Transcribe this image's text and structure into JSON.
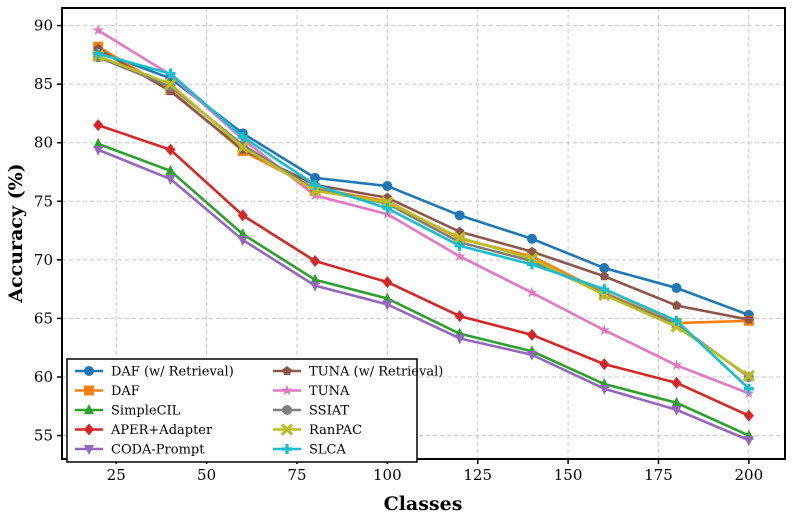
{
  "chart_data": {
    "type": "line",
    "title": "",
    "xlabel": "Classes",
    "ylabel": "Accuracy (%)",
    "xlim": [
      10,
      210
    ],
    "ylim": [
      53,
      91.5
    ],
    "grid": true,
    "legend_position": "lower-left",
    "x": [
      20,
      40,
      60,
      80,
      100,
      120,
      140,
      160,
      180,
      200
    ],
    "x_ticks": [
      25,
      50,
      75,
      100,
      125,
      150,
      175,
      200
    ],
    "y_ticks": [
      55,
      60,
      65,
      70,
      75,
      80,
      85,
      90
    ],
    "series": [
      {
        "name": "DAF (w/ Retrieval)",
        "color": "#1f77b4",
        "marker": "circle",
        "values": [
          87.8,
          85.5,
          80.8,
          77.0,
          76.3,
          73.8,
          71.8,
          69.3,
          67.6,
          65.3
        ]
      },
      {
        "name": "DAF",
        "color": "#ff7f0e",
        "marker": "square",
        "values": [
          88.2,
          84.5,
          79.3,
          76.1,
          75.0,
          71.8,
          70.3,
          67.2,
          64.6,
          64.8
        ]
      },
      {
        "name": "SimpleCIL",
        "color": "#2ca02c",
        "marker": "triangle",
        "values": [
          79.9,
          77.6,
          72.2,
          68.3,
          66.7,
          63.7,
          62.2,
          59.4,
          57.8,
          55.0
        ]
      },
      {
        "name": "APER+Adapter",
        "color": "#d62728",
        "marker": "diamond",
        "values": [
          81.5,
          79.4,
          73.8,
          69.9,
          68.1,
          65.2,
          63.6,
          61.1,
          59.5,
          56.7
        ]
      },
      {
        "name": "CODA-Prompt",
        "color": "#9467bd",
        "marker": "triangle-down",
        "values": [
          79.4,
          76.9,
          71.7,
          67.8,
          66.2,
          63.3,
          61.9,
          59.0,
          57.2,
          54.6
        ]
      },
      {
        "name": "TUNA (w/ Retrieval)",
        "color": "#8c564b",
        "marker": "pentagon",
        "values": [
          88.0,
          84.4,
          79.4,
          76.4,
          75.3,
          72.4,
          70.7,
          68.6,
          66.1,
          64.9
        ]
      },
      {
        "name": "TUNA",
        "color": "#e377c2",
        "marker": "star",
        "values": [
          89.6,
          85.8,
          80.3,
          75.5,
          73.9,
          70.3,
          67.2,
          64.0,
          61.0,
          58.6
        ]
      },
      {
        "name": "SSIAT",
        "color": "#7f7f7f",
        "marker": "circle",
        "values": [
          87.3,
          84.8,
          79.8,
          76.0,
          74.8,
          71.5,
          69.9,
          67.1,
          64.5,
          60.0
        ]
      },
      {
        "name": "RanPAC",
        "color": "#bcbd22",
        "marker": "x",
        "values": [
          87.4,
          85.0,
          79.6,
          75.9,
          74.9,
          71.9,
          70.1,
          67.0,
          64.3,
          60.1
        ]
      },
      {
        "name": "SLCA",
        "color": "#17becf",
        "marker": "plus",
        "values": [
          87.6,
          85.9,
          80.5,
          76.4,
          74.4,
          71.2,
          69.6,
          67.5,
          64.8,
          59.0
        ]
      }
    ]
  }
}
